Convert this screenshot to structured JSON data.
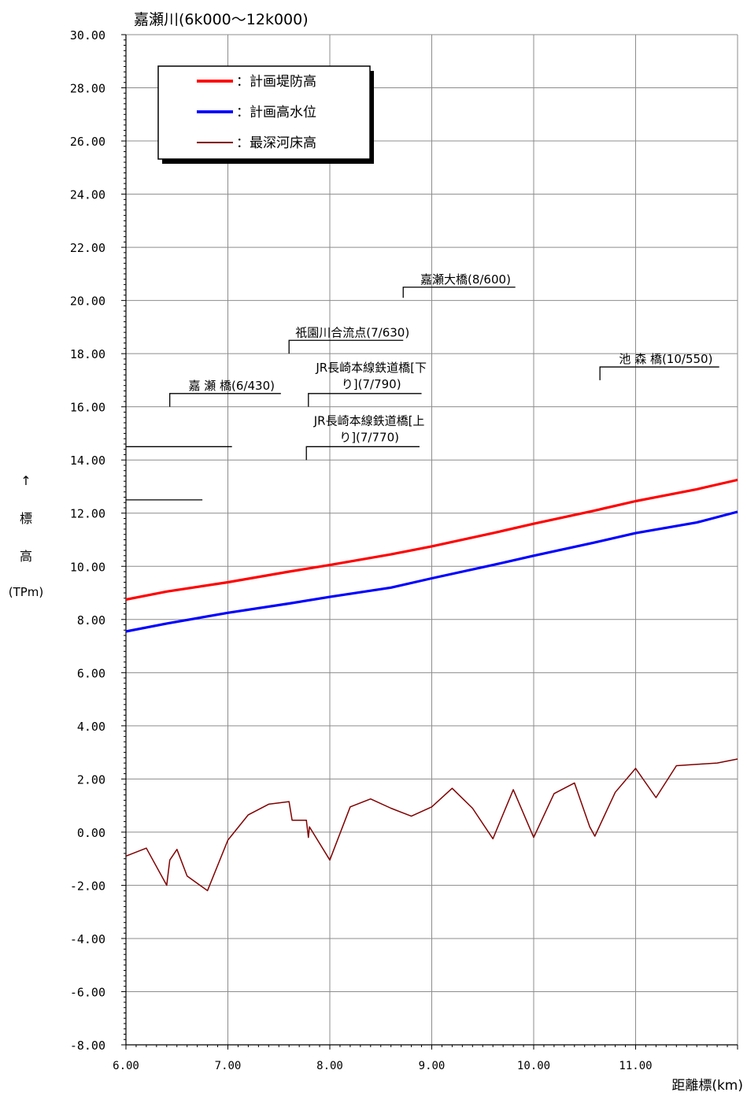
{
  "chart_data": {
    "type": "line",
    "title": "嘉瀬川(6k000～12k000)",
    "xlabel": "距離標(km)",
    "ylabel": {
      "arrow": "↑",
      "line1": "標",
      "line2": "高",
      "unit": "(TPm)"
    },
    "xlim": [
      6,
      12
    ],
    "ylim": [
      -8,
      30
    ],
    "x_ticks": [
      6,
      7,
      8,
      9,
      10,
      11
    ],
    "x_tick_labels": [
      "6.00",
      "7.00",
      "8.00",
      "9.00",
      "10.00",
      "11.00"
    ],
    "y_ticks": [
      -8,
      -6,
      -4,
      -2,
      0,
      2,
      4,
      6,
      8,
      10,
      12,
      14,
      16,
      18,
      20,
      22,
      24,
      26,
      28,
      30
    ],
    "y_tick_labels": [
      "-8.00",
      "-6.00",
      "-4.00",
      "-2.00",
      "0.00",
      "2.00",
      "4.00",
      "6.00",
      "8.00",
      "10.00",
      "12.00",
      "14.00",
      "16.00",
      "18.00",
      "20.00",
      "22.00",
      "24.00",
      "26.00",
      "28.00",
      "30.00"
    ],
    "grid": true,
    "legend_position": "top-left",
    "series": [
      {
        "name": "：計画堤防高",
        "color": "#ff0000",
        "x": [
          6.0,
          6.4,
          7.0,
          7.6,
          8.0,
          8.6,
          9.0,
          9.6,
          10.0,
          10.6,
          11.0,
          11.6,
          12.0
        ],
        "values": [
          8.75,
          9.05,
          9.4,
          9.8,
          10.05,
          10.45,
          10.75,
          11.25,
          11.6,
          12.1,
          12.45,
          12.9,
          13.25
        ]
      },
      {
        "name": "：計画高水位",
        "color": "#0000ff",
        "x": [
          6.0,
          6.4,
          7.0,
          7.6,
          8.0,
          8.6,
          9.0,
          9.6,
          10.0,
          10.6,
          11.0,
          11.6,
          12.0
        ],
        "values": [
          7.55,
          7.85,
          8.25,
          8.6,
          8.85,
          9.2,
          9.55,
          10.05,
          10.4,
          10.9,
          11.25,
          11.65,
          12.05
        ]
      },
      {
        "name": "：最深河床高",
        "color": "#800000",
        "x": [
          6.0,
          6.2,
          6.4,
          6.43,
          6.5,
          6.6,
          6.8,
          7.0,
          7.2,
          7.4,
          7.6,
          7.63,
          7.77,
          7.79,
          7.8,
          8.0,
          8.2,
          8.4,
          8.6,
          8.8,
          9.0,
          9.2,
          9.4,
          9.6,
          9.8,
          10.0,
          10.2,
          10.4,
          10.55,
          10.6,
          10.8,
          11.0,
          11.2,
          11.4,
          11.6,
          11.8,
          12.0
        ],
        "values": [
          -0.9,
          -0.6,
          -2.0,
          -1.05,
          -0.65,
          -1.65,
          -2.2,
          -0.3,
          0.65,
          1.05,
          1.15,
          0.45,
          0.45,
          -0.2,
          0.2,
          -1.05,
          0.95,
          1.25,
          0.9,
          0.6,
          0.95,
          1.65,
          0.9,
          -0.25,
          1.6,
          -0.2,
          1.45,
          1.85,
          0.2,
          -0.15,
          1.5,
          2.4,
          1.3,
          2.5,
          2.55,
          2.6,
          2.75
        ]
      }
    ],
    "annotations": [
      {
        "label": "嘉瀬大橋(8/600)",
        "x": 8.72,
        "y_base": 20.1,
        "y_top": 20.5,
        "x_end": 9.82
      },
      {
        "label": "祇園川合流点(7/630)",
        "x": 7.6,
        "y_base": 18.0,
        "y_top": 18.5,
        "x_end": 8.72
      },
      {
        "label": "池 森 橋(10/550)",
        "x": 10.65,
        "y_base": 17.0,
        "y_top": 17.5,
        "x_end": 11.82
      },
      {
        "label": "嘉 瀬 橋(6/430)",
        "x": 6.43,
        "y_base": 16.0,
        "y_top": 16.5,
        "x_end": 7.52
      },
      {
        "label": [
          "JR長崎本線鉄道橋[下",
          "り](7/790)"
        ],
        "x": 7.79,
        "y_base": 16.0,
        "y_top": 16.5,
        "x_end": 8.9
      },
      {
        "label": [
          "JR長崎本線鉄道橋[上",
          "り](7/770)"
        ],
        "x": 7.77,
        "y_base": 14.0,
        "y_top": 14.5,
        "x_end": 8.88
      }
    ],
    "reference_lines": [
      {
        "x_start": 6.0,
        "x_end": 7.04,
        "y": 14.5
      },
      {
        "x_start": 6.0,
        "x_end": 6.75,
        "y": 12.5
      }
    ]
  }
}
